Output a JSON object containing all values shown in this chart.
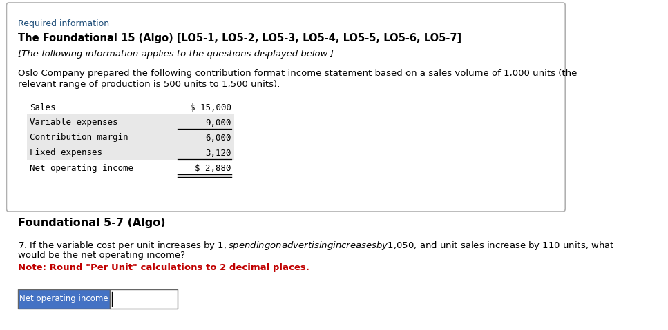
{
  "required_info_label": "Required information",
  "title_bold": "The Foundational 15 (Algo) [LO5-1, LO5-2, LO5-3, LO5-4, LO5-5, LO5-6, LO5-7]",
  "subtitle_italic": "[The following information applies to the questions displayed below.]",
  "body_line1": "Oslo Company prepared the following contribution format income statement based on a sales volume of 1,000 units (the",
  "body_line2": "relevant range of production is 500 units to 1,500 units):",
  "table_labels": [
    "Sales",
    "Variable expenses",
    "Contribution margin",
    "Fixed expenses",
    "Net operating income"
  ],
  "table_values": [
    "$ 15,000",
    "9,000",
    "6,000",
    "3,120",
    "$ 2,880"
  ],
  "table_shaded_rows": [
    1,
    2,
    3
  ],
  "section2_title": "Foundational 5-7 (Algo)",
  "question_line1": "7. If the variable cost per unit increases by $1, spending on advertising increases by $1,050, and unit sales increase by 110 units, what",
  "question_line2": "would be the net operating income?",
  "note_text": "Note: Round \"Per Unit\" calculations to 2 decimal places.",
  "input_label": "Net operating income",
  "bg_color": "#ffffff",
  "box_border_color": "#b0b0b0",
  "required_info_color": "#1f4e79",
  "note_color": "#c00000",
  "input_label_bg": "#4472c4",
  "input_label_text_color": "#ffffff",
  "table_shade_color": "#e8e8e8",
  "monospace_font": "monospace"
}
